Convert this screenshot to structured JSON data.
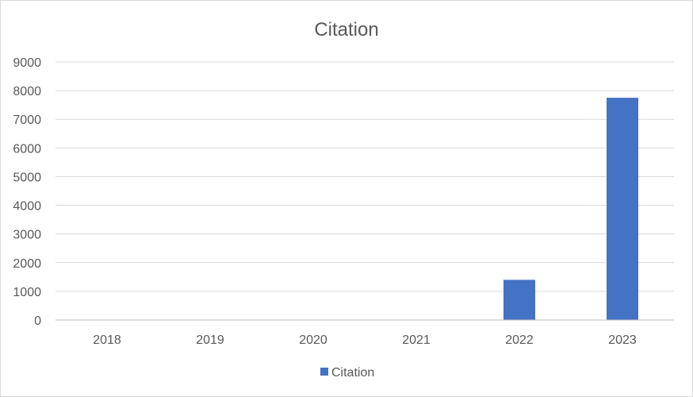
{
  "chart_data": {
    "type": "bar",
    "title": "Citation",
    "categories": [
      "2018",
      "2019",
      "2020",
      "2021",
      "2022",
      "2023"
    ],
    "series": [
      {
        "name": "Citation",
        "values": [
          0,
          0,
          0,
          0,
          1400,
          7750
        ],
        "color": "#4472c4"
      }
    ],
    "ylim": [
      0,
      9000
    ],
    "yticks": [
      "0",
      "1000",
      "2000",
      "3000",
      "4000",
      "5000",
      "6000",
      "7000",
      "8000",
      "9000"
    ],
    "grid": true,
    "legend_position": "bottom"
  }
}
